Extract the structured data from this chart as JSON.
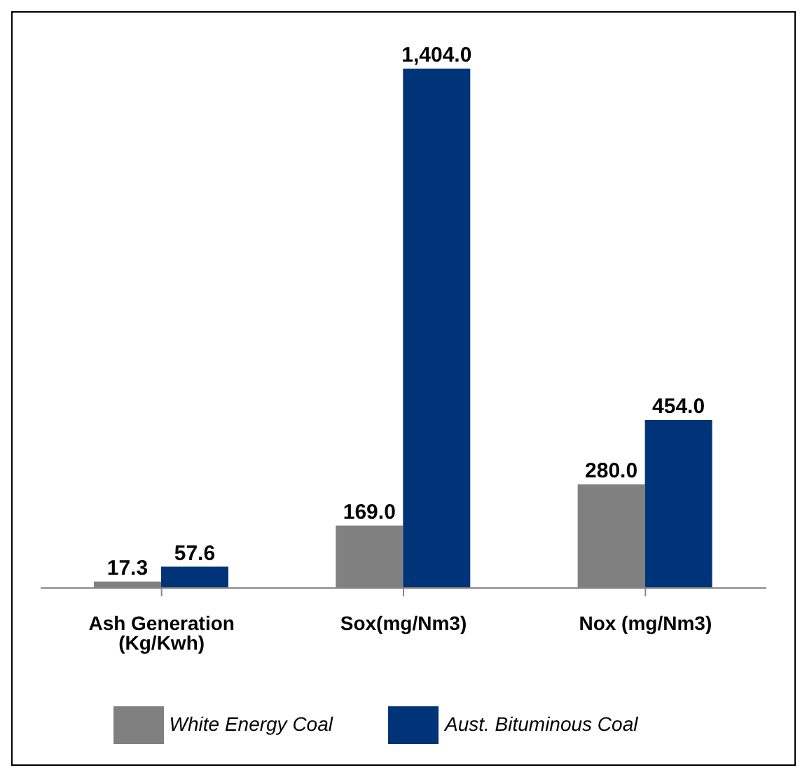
{
  "chart_data": {
    "type": "bar",
    "categories": [
      "Ash Generation (Kg/Kwh)",
      "Sox(mg/Nm3)",
      "Nox (mg/Nm3)"
    ],
    "series": [
      {
        "name": "White Energy Coal",
        "color": "#808080",
        "values": [
          17.3,
          169.0,
          280.0
        ],
        "value_labels": [
          "17.3",
          "169.0",
          "280.0"
        ]
      },
      {
        "name": "Aust. Bituminous Coal",
        "color": "#003478",
        "values": [
          57.6,
          1404.0,
          454.0
        ],
        "value_labels": [
          "57.6",
          "1,404.0",
          "454.0"
        ]
      }
    ],
    "legend": "bottom",
    "grid": false
  }
}
